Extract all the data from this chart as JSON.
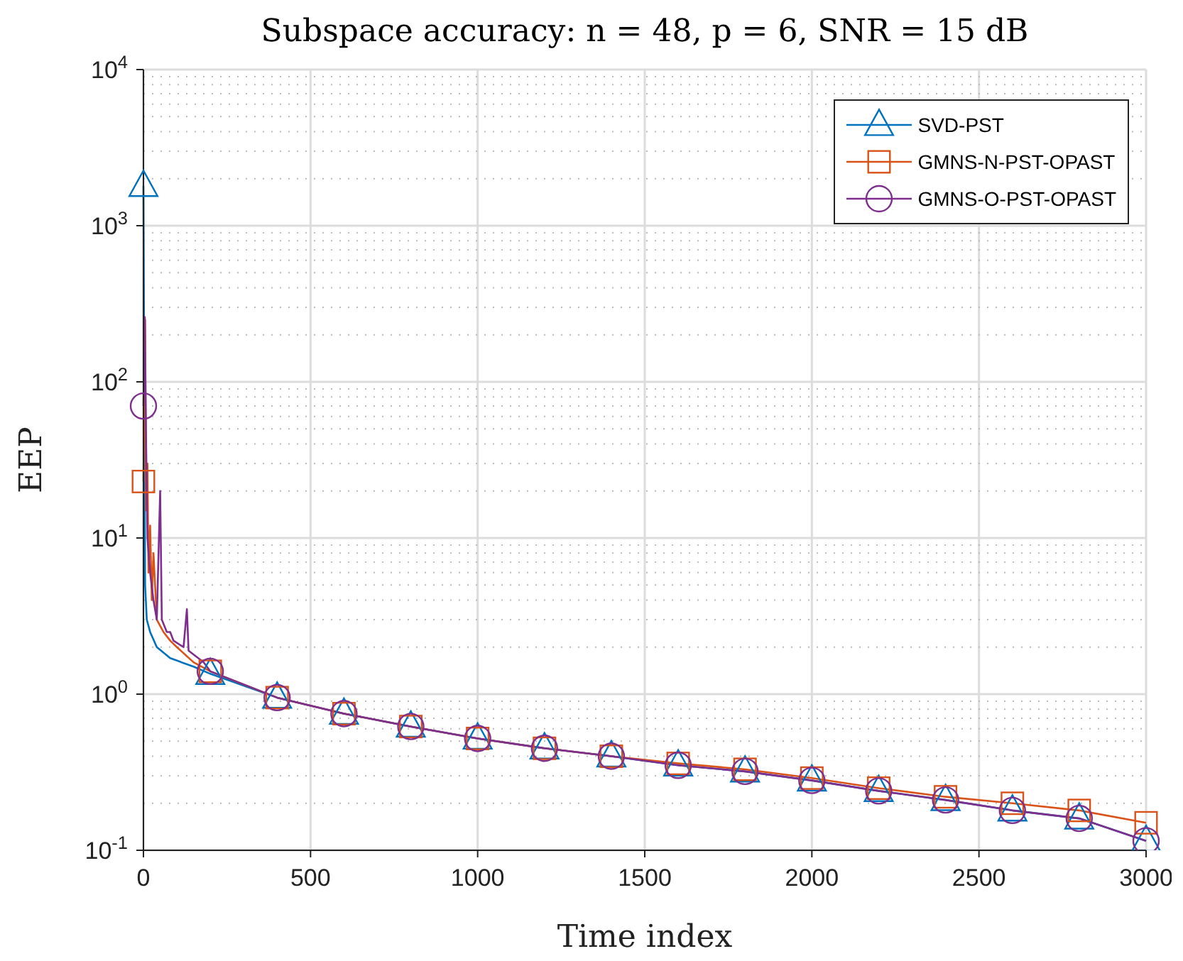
{
  "chart_data": {
    "type": "line",
    "title": "Subspace accuracy: n = 48, p = 6, SNR = 15 dB",
    "xlabel": "Time index",
    "ylabel": "EEP",
    "log": "y",
    "grid": true,
    "legend": "top right",
    "xlim": [
      0,
      3000
    ],
    "xticks": [
      0,
      500,
      1000,
      1500,
      2000,
      2500,
      3000
    ],
    "ylim": [
      0.1,
      10000
    ],
    "yticks": [
      {
        "value": 0.1,
        "label": "10$^{-1}$"
      },
      {
        "value": 1,
        "label": "10$^{0}$"
      },
      {
        "value": 10,
        "label": "10$^{1}$"
      },
      {
        "value": 100,
        "label": "10$^{2}$"
      },
      {
        "value": 1000,
        "label": "10$^{3}$"
      },
      {
        "value": 10000,
        "label": "10$^{4}$"
      }
    ],
    "series": [
      {
        "name": "SVD-PST",
        "color": "#0072bd",
        "marker": "triangle",
        "x": [
          0,
          5,
          10,
          20,
          40,
          80,
          150,
          200,
          400,
          600,
          800,
          1000,
          1200,
          1400,
          1600,
          1800,
          2000,
          2200,
          2400,
          2600,
          2800,
          3000
        ],
        "values": [
          1800,
          5,
          3,
          2.5,
          2,
          1.7,
          1.5,
          1.35,
          0.95,
          0.75,
          0.62,
          0.52,
          0.45,
          0.4,
          0.35,
          0.32,
          0.28,
          0.24,
          0.21,
          0.18,
          0.16,
          0.115
        ]
      },
      {
        "name": "GMNS-N-PST-OPAST",
        "color": "#d95319",
        "marker": "square",
        "x": [
          0,
          5,
          8,
          12,
          15,
          20,
          25,
          30,
          40,
          60,
          80,
          100,
          150,
          200,
          400,
          600,
          800,
          1000,
          1200,
          1400,
          1600,
          1800,
          2000,
          2200,
          2400,
          2600,
          2800,
          3000
        ],
        "values": [
          23,
          250,
          15,
          30,
          6,
          12,
          4,
          8,
          3,
          2.5,
          2.2,
          2,
          1.6,
          1.4,
          0.95,
          0.75,
          0.62,
          0.52,
          0.45,
          0.4,
          0.36,
          0.33,
          0.29,
          0.25,
          0.22,
          0.2,
          0.18,
          0.15
        ]
      },
      {
        "name": "GMNS-O-PST-OPAST",
        "color": "#7e2f8e",
        "marker": "circle",
        "x": [
          0,
          4,
          8,
          12,
          20,
          30,
          40,
          50,
          55,
          70,
          80,
          90,
          120,
          130,
          135,
          180,
          200,
          400,
          600,
          800,
          1000,
          1200,
          1400,
          1600,
          1800,
          2000,
          2200,
          2400,
          2600,
          2800,
          3000
        ],
        "values": [
          70,
          260,
          40,
          10,
          6,
          4,
          3,
          20,
          3,
          2.5,
          2.5,
          2.2,
          2,
          3.5,
          1.9,
          1.6,
          1.4,
          0.95,
          0.75,
          0.62,
          0.52,
          0.45,
          0.4,
          0.35,
          0.32,
          0.28,
          0.24,
          0.21,
          0.18,
          0.16,
          0.115
        ]
      }
    ]
  }
}
